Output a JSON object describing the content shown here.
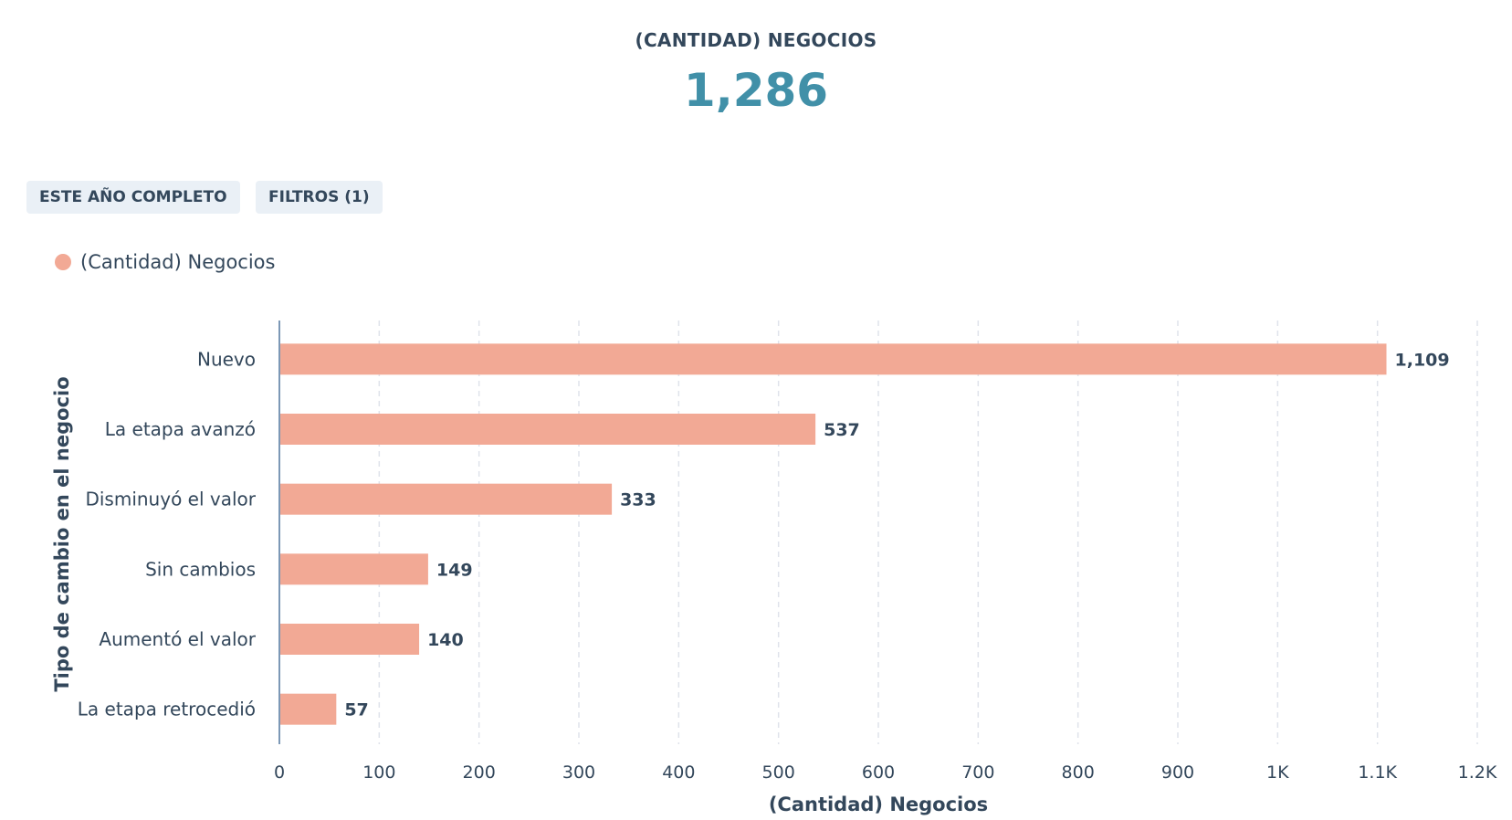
{
  "kpi": {
    "label": "(CANTIDAD) NEGOCIOS",
    "value": "1,286"
  },
  "filters": {
    "date_range": "ESTE AÑO COMPLETO",
    "filters_label": "FILTROS (1)"
  },
  "legend": {
    "series_label": "(Cantidad) Negocios",
    "color": "#f2a995"
  },
  "colors": {
    "bar": "#f2a995",
    "kpi_value": "#4190a8",
    "text": "#33475b",
    "grid": "#dfe3eb",
    "axis": "#7c98b6",
    "chip_bg": "#eaf0f6"
  },
  "chart_data": {
    "type": "bar",
    "orientation": "horizontal",
    "categories": [
      "Nuevo",
      "La etapa avanzó",
      "Disminuyó el valor",
      "Sin cambios",
      "Aumentó el valor",
      "La etapa retrocedió"
    ],
    "series": [
      {
        "name": "(Cantidad) Negocios",
        "values": [
          1109,
          537,
          333,
          149,
          140,
          57
        ],
        "labels": [
          "1,109",
          "537",
          "333",
          "149",
          "140",
          "57"
        ]
      }
    ],
    "xlabel": "(Cantidad) Negocios",
    "ylabel": "Tipo de cambio en el negocio",
    "xlim": [
      0,
      1200
    ],
    "xticks": [
      0,
      100,
      200,
      300,
      400,
      500,
      600,
      700,
      800,
      900,
      1000,
      1100,
      1200
    ],
    "xtick_labels": [
      "0",
      "100",
      "200",
      "300",
      "400",
      "500",
      "600",
      "700",
      "800",
      "900",
      "1K",
      "1.1K",
      "1.2K"
    ],
    "grid": true,
    "legend_position": "top-left"
  }
}
